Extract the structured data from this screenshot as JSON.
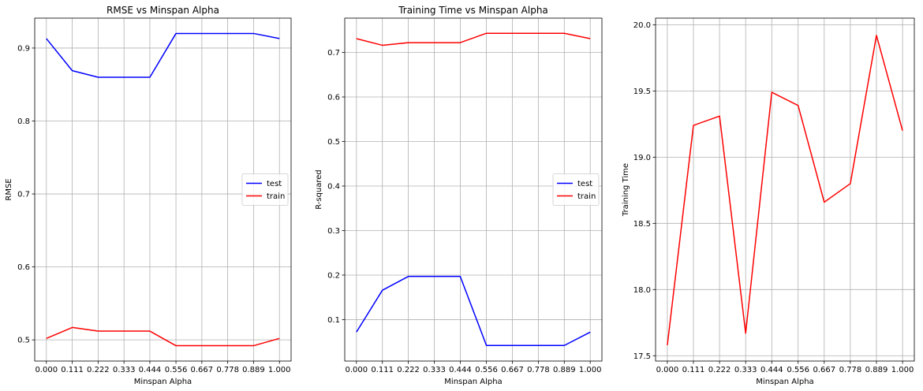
{
  "chart_data": [
    {
      "type": "line",
      "title": "RMSE vs Minspan Alpha",
      "xlabel": "Minspan Alpha",
      "ylabel": "RMSE",
      "x": [
        0.0,
        0.111,
        0.222,
        0.333,
        0.444,
        0.556,
        0.667,
        0.778,
        0.889,
        1.0
      ],
      "xtick_labels": [
        "0.000",
        "0.111",
        "0.222",
        "0.333",
        "0.444",
        "0.556",
        "0.667",
        "0.778",
        "0.889",
        "1.000"
      ],
      "xlim": [
        -0.05,
        1.05
      ],
      "ylim": [
        0.471,
        0.941
      ],
      "yticks": [
        0.5,
        0.6,
        0.7,
        0.8,
        0.9
      ],
      "ytick_labels": [
        "0.5",
        "0.6",
        "0.7",
        "0.8",
        "0.9"
      ],
      "grid": true,
      "legend": "center-right",
      "series": [
        {
          "name": "test",
          "color": "#0000ff",
          "values": [
            0.913,
            0.869,
            0.86,
            0.86,
            0.86,
            0.92,
            0.92,
            0.92,
            0.92,
            0.913
          ]
        },
        {
          "name": "train",
          "color": "#ff0000",
          "values": [
            0.502,
            0.517,
            0.512,
            0.512,
            0.512,
            0.492,
            0.492,
            0.492,
            0.492,
            0.502
          ]
        }
      ]
    },
    {
      "type": "line",
      "title": "Training Time vs Minspan Alpha",
      "xlabel": "Minspan Alpha",
      "ylabel": "R-squared",
      "x": [
        0.0,
        0.111,
        0.222,
        0.333,
        0.444,
        0.556,
        0.667,
        0.778,
        0.889,
        1.0
      ],
      "xtick_labels": [
        "0.000",
        "0.111",
        "0.222",
        "0.333",
        "0.444",
        "0.556",
        "0.667",
        "0.778",
        "0.889",
        "1.000"
      ],
      "xlim": [
        -0.05,
        1.05
      ],
      "ylim": [
        0.007,
        0.777
      ],
      "yticks": [
        0.1,
        0.2,
        0.3,
        0.4,
        0.5,
        0.6,
        0.7
      ],
      "ytick_labels": [
        "0.1",
        "0.2",
        "0.3",
        "0.4",
        "0.5",
        "0.6",
        "0.7"
      ],
      "grid": true,
      "legend": "center-right",
      "series": [
        {
          "name": "test",
          "color": "#0000ff",
          "values": [
            0.072,
            0.166,
            0.197,
            0.197,
            0.197,
            0.042,
            0.042,
            0.042,
            0.042,
            0.072
          ]
        },
        {
          "name": "train",
          "color": "#ff0000",
          "values": [
            0.731,
            0.716,
            0.722,
            0.722,
            0.722,
            0.743,
            0.743,
            0.743,
            0.743,
            0.731
          ]
        }
      ]
    },
    {
      "type": "line",
      "title": "",
      "xlabel": "Minspan Alpha",
      "ylabel": "Training Time",
      "x": [
        0.0,
        0.111,
        0.222,
        0.333,
        0.444,
        0.556,
        0.667,
        0.778,
        0.889,
        1.0
      ],
      "xtick_labels": [
        "0.000",
        "0.111",
        "0.222",
        "0.333",
        "0.444",
        "0.556",
        "0.667",
        "0.778",
        "0.889",
        "1.000"
      ],
      "xlim": [
        -0.05,
        1.05
      ],
      "ylim": [
        17.46,
        20.05
      ],
      "yticks": [
        17.5,
        18.0,
        18.5,
        19.0,
        19.5,
        20.0
      ],
      "ytick_labels": [
        "17.5",
        "18.0",
        "18.5",
        "19.0",
        "19.5",
        "20.0"
      ],
      "grid": true,
      "legend": "none",
      "series": [
        {
          "color": "#ff0000",
          "values": [
            17.58,
            19.24,
            19.31,
            17.67,
            19.49,
            19.39,
            18.66,
            18.8,
            19.92,
            19.2
          ]
        }
      ]
    }
  ]
}
